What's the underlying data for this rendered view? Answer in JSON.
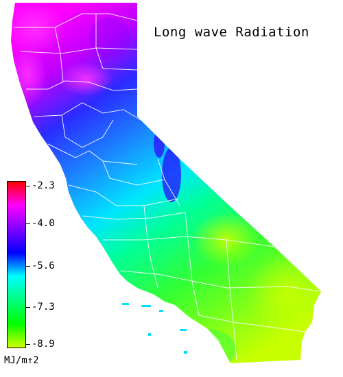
{
  "map": {
    "title": "Long wave Radiation",
    "region": "California",
    "legend": {
      "unit": "MJ/m↑2",
      "ticks": [
        "-2.3",
        "-4.0",
        "-5.6",
        "-7.3",
        "-8.9"
      ],
      "min": -8.9,
      "max": -2.3,
      "colors": [
        "#ff0000",
        "#ff00ff",
        "#7f00ff",
        "#0000ff",
        "#00ffff",
        "#00ff7f",
        "#00ff00",
        "#cfff00"
      ]
    },
    "colors": {
      "background": "#ffffff",
      "county_lines": "#ffffff",
      "text": "#000000"
    }
  }
}
